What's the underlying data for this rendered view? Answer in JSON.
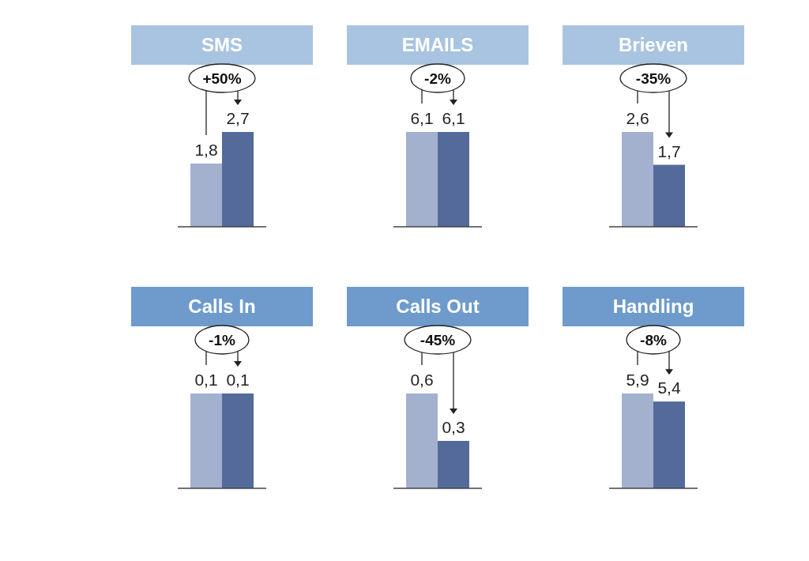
{
  "chart_data": [
    {
      "type": "bar",
      "title": "SMS",
      "categories": [
        null,
        null
      ],
      "values": [
        1.8,
        2.7
      ],
      "colors": [
        "#a3b1cf",
        "#536a9a"
      ],
      "value_labels": [
        "1,8",
        "2,7"
      ],
      "annotations": [
        "+50%"
      ]
    },
    {
      "type": "bar",
      "title": "EMAILS",
      "categories": [
        null,
        null
      ],
      "values": [
        6.1,
        6.1
      ],
      "colors": [
        "#a3b1cf",
        "#536a9a"
      ],
      "value_labels": [
        "6,1",
        "6,1"
      ],
      "annotations": [
        "-2%"
      ]
    },
    {
      "type": "bar",
      "title": "Brieven",
      "categories": [
        null,
        null
      ],
      "values": [
        2.6,
        1.7
      ],
      "colors": [
        "#a3b1cf",
        "#536a9a"
      ],
      "value_labels": [
        "2,6",
        "1,7"
      ],
      "annotations": [
        "-35%"
      ]
    },
    {
      "type": "bar",
      "title": "Calls In",
      "categories": [
        null,
        null
      ],
      "values": [
        0.1,
        0.1
      ],
      "colors": [
        "#a3b1cf",
        "#536a9a"
      ],
      "value_labels": [
        "0,1",
        "0,1"
      ],
      "annotations": [
        "-1%"
      ]
    },
    {
      "type": "bar",
      "title": "Calls Out",
      "categories": [
        null,
        null
      ],
      "values": [
        0.6,
        0.3
      ],
      "colors": [
        "#a3b1cf",
        "#536a9a"
      ],
      "value_labels": [
        "0,6",
        "0,3"
      ],
      "annotations": [
        "-45%"
      ]
    },
    {
      "type": "bar",
      "title": "Handling",
      "categories": [
        null,
        null
      ],
      "values": [
        5.9,
        5.4
      ],
      "colors": [
        "#a3b1cf",
        "#536a9a"
      ],
      "value_labels": [
        "5,9",
        "5,4"
      ],
      "annotations": [
        "-8%"
      ]
    }
  ]
}
